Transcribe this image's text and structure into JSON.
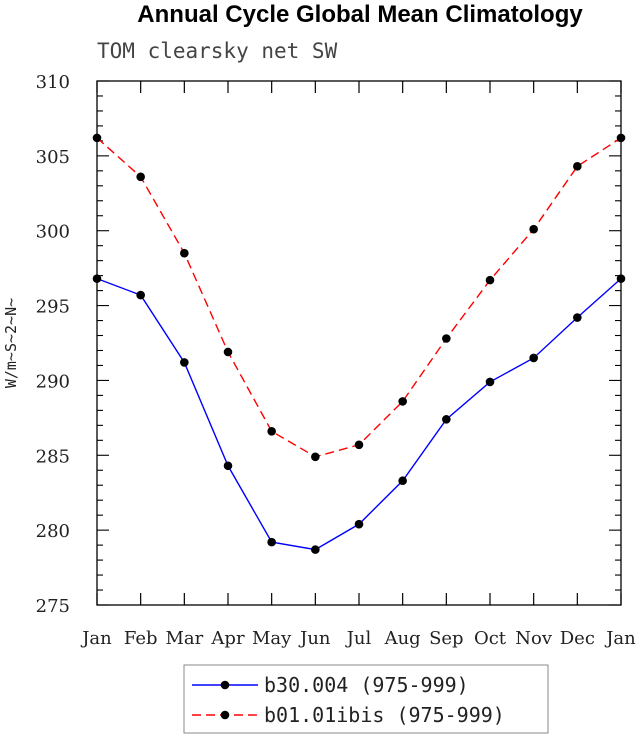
{
  "chart_data": {
    "type": "line",
    "title": "Annual Cycle Global Mean Climatology",
    "subtitle": "TOM clearsky net SW",
    "ylabel": "W/m~S~2~N~",
    "xlabel": "",
    "categories": [
      "Jan",
      "Feb",
      "Mar",
      "Apr",
      "May",
      "Jun",
      "Jul",
      "Aug",
      "Sep",
      "Oct",
      "Nov",
      "Dec",
      "Jan"
    ],
    "ylim": [
      275,
      310
    ],
    "yticks": [
      275,
      280,
      285,
      290,
      295,
      300,
      305,
      310
    ],
    "ytick_labels": [
      "275",
      "280",
      "285",
      "290",
      "295",
      "300",
      "305",
      "310"
    ],
    "grid": false,
    "legend_position": "bottom",
    "series": [
      {
        "name": "b30.004 (975-999)",
        "color": "#0000ff",
        "dash": "solid",
        "marker": "filled-circle",
        "values": [
          296.8,
          295.7,
          291.2,
          284.3,
          279.2,
          278.7,
          280.4,
          283.3,
          287.4,
          289.9,
          291.5,
          294.2,
          296.8
        ]
      },
      {
        "name": "b01.01ibis (975-999)",
        "color": "#ff0000",
        "dash": "dashed",
        "marker": "filled-circle",
        "values": [
          306.2,
          303.6,
          298.5,
          291.9,
          286.6,
          284.9,
          285.7,
          288.6,
          292.8,
          296.7,
          300.1,
          304.3,
          306.2
        ]
      }
    ]
  }
}
